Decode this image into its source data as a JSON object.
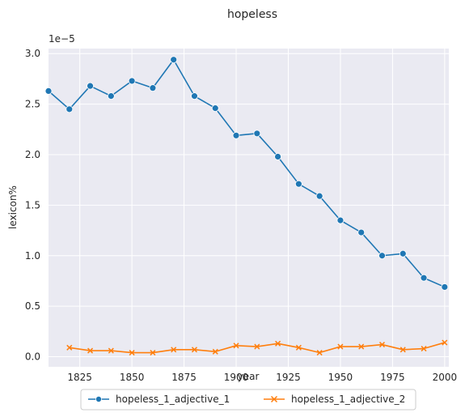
{
  "chart_data": {
    "type": "line",
    "title": "hopeless",
    "xlabel": "year",
    "ylabel": "lexicon%",
    "y_scale_note": "1e−5",
    "xlim": [
      1810,
      2002
    ],
    "ylim": [
      -0.1,
      3.05
    ],
    "x_ticks": [
      1825,
      1850,
      1875,
      1900,
      1925,
      1950,
      1975,
      2000
    ],
    "y_ticks": [
      "0.0",
      "0.5",
      "1.0",
      "1.5",
      "2.0",
      "2.5",
      "3.0"
    ],
    "grid": true,
    "legend_position": "bottom-center",
    "series": [
      {
        "name": "hopeless_1_adjective_1",
        "color": "#1f77b4",
        "marker": "circle",
        "x": [
          1810,
          1820,
          1830,
          1840,
          1850,
          1860,
          1870,
          1880,
          1890,
          1900,
          1910,
          1920,
          1930,
          1940,
          1950,
          1960,
          1970,
          1980,
          1990,
          2000
        ],
        "values": [
          2.63,
          2.45,
          2.68,
          2.58,
          2.73,
          2.66,
          2.94,
          2.58,
          2.46,
          2.19,
          2.21,
          1.98,
          1.71,
          1.59,
          1.35,
          1.23,
          1.0,
          1.02,
          0.78,
          0.69
        ]
      },
      {
        "name": "hopeless_1_adjective_2",
        "color": "#ff7f0e",
        "marker": "x",
        "x": [
          1820,
          1830,
          1840,
          1850,
          1860,
          1870,
          1880,
          1890,
          1900,
          1910,
          1920,
          1930,
          1940,
          1950,
          1960,
          1970,
          1980,
          1990,
          2000
        ],
        "values": [
          0.09,
          0.06,
          0.06,
          0.04,
          0.04,
          0.07,
          0.07,
          0.05,
          0.11,
          0.1,
          0.13,
          0.09,
          0.04,
          0.1,
          0.1,
          0.12,
          0.07,
          0.08,
          0.14
        ]
      }
    ]
  }
}
